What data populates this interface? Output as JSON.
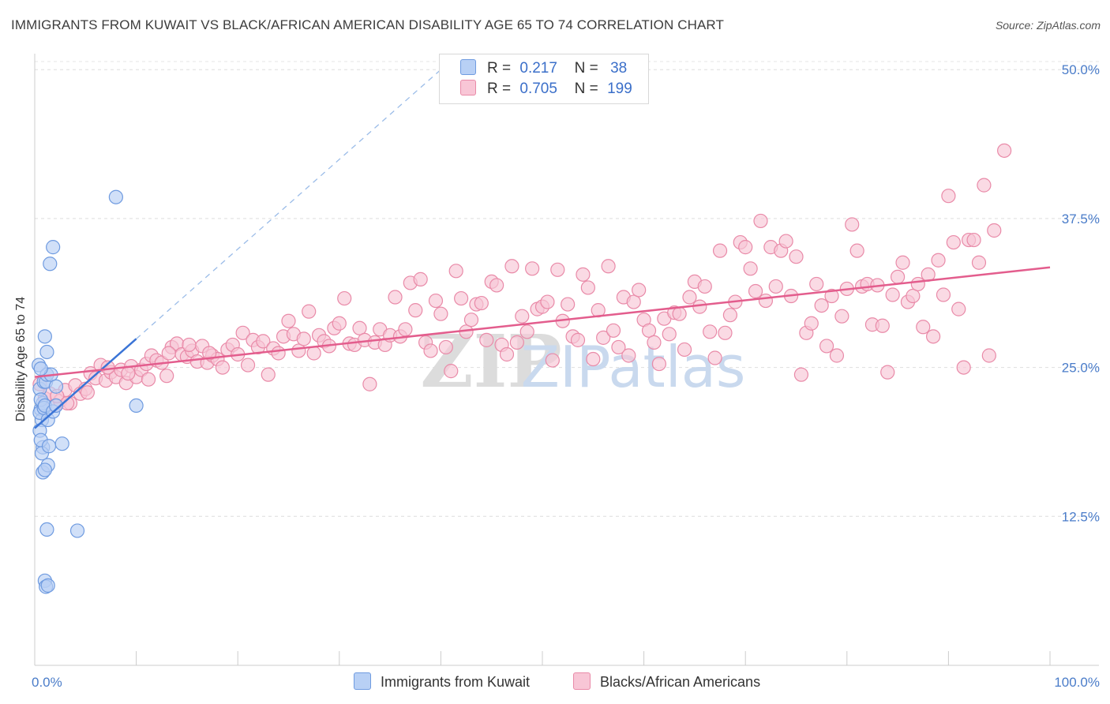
{
  "title": "IMMIGRANTS FROM KUWAIT VS BLACK/AFRICAN AMERICAN DISABILITY AGE 65 TO 74 CORRELATION CHART",
  "source": "Source: ZipAtlas.com",
  "watermark": "ZIPatlas",
  "legend": {
    "rows": [
      {
        "r_label": "R =",
        "r_value": "0.217",
        "n_label": "N =",
        "n_value": "38",
        "color": "#b8d0f5",
        "border": "#6f9be0"
      },
      {
        "r_label": "R =",
        "r_value": "0.705",
        "n_label": "N =",
        "n_value": "199",
        "color": "#f8c6d6",
        "border": "#e98aa8"
      }
    ]
  },
  "bottom_legend": [
    {
      "label": "Immigrants from Kuwait",
      "color": "#b8d0f5",
      "border": "#6f9be0"
    },
    {
      "label": "Blacks/African Americans",
      "color": "#f8c6d6",
      "border": "#e98aa8"
    }
  ],
  "chart_data": {
    "type": "scatter",
    "title": "IMMIGRANTS FROM KUWAIT VS BLACK/AFRICAN AMERICAN DISABILITY AGE 65 TO 74 CORRELATION CHART",
    "xlabel": "",
    "ylabel": "Disability Age 65 to 74",
    "xlim": [
      0,
      100
    ],
    "ylim": [
      0,
      52
    ],
    "x_tick_labels": [
      "0.0%",
      "100.0%"
    ],
    "y_ticks": [
      12.5,
      25.0,
      37.5,
      50.0
    ],
    "y_tick_labels": [
      "12.5%",
      "25.0%",
      "37.5%",
      "50.0%"
    ],
    "series": [
      {
        "name": "Immigrants from Kuwait",
        "color": "#6f9be0",
        "fill": "#b8d0f5",
        "trend": {
          "x": [
            0,
            10
          ],
          "y": [
            19.9,
            27.4
          ]
        },
        "trend_extension": {
          "x": [
            10,
            40
          ],
          "y": [
            27.4,
            50.0
          ]
        },
        "points": [
          [
            0.4,
            25.2
          ],
          [
            0.5,
            23.2
          ],
          [
            0.6,
            21.5
          ],
          [
            0.7,
            20.6
          ],
          [
            0.5,
            21.2
          ],
          [
            0.8,
            22.0
          ],
          [
            0.9,
            23.8
          ],
          [
            0.6,
            22.3
          ],
          [
            0.9,
            21.6
          ],
          [
            1.0,
            21.8
          ],
          [
            1.1,
            23.8
          ],
          [
            1.2,
            24.4
          ],
          [
            0.5,
            19.7
          ],
          [
            0.8,
            18.3
          ],
          [
            1.3,
            20.6
          ],
          [
            0.6,
            18.9
          ],
          [
            0.7,
            17.8
          ],
          [
            1.6,
            24.4
          ],
          [
            0.8,
            16.2
          ],
          [
            1.3,
            16.8
          ],
          [
            1.8,
            21.3
          ],
          [
            2.1,
            21.8
          ],
          [
            2.7,
            18.6
          ],
          [
            1.4,
            18.4
          ],
          [
            1.0,
            16.4
          ],
          [
            1.2,
            26.3
          ],
          [
            1.0,
            27.6
          ],
          [
            1.5,
            33.7
          ],
          [
            1.8,
            35.1
          ],
          [
            8.0,
            39.3
          ],
          [
            1.2,
            11.4
          ],
          [
            4.2,
            11.3
          ],
          [
            1.0,
            7.1
          ],
          [
            1.1,
            6.6
          ],
          [
            1.3,
            6.7
          ],
          [
            10.0,
            21.8
          ],
          [
            2.1,
            23.4
          ],
          [
            0.6,
            24.9
          ]
        ]
      },
      {
        "name": "Blacks/African Americans",
        "color": "#e35d8d",
        "fill": "#f8c6d6",
        "trend": {
          "x": [
            0,
            100
          ],
          "y": [
            24.2,
            33.4
          ]
        },
        "points": [
          [
            0.5,
            23.6
          ],
          [
            1.0,
            22.4
          ],
          [
            1.5,
            22.8
          ],
          [
            2.0,
            21.8
          ],
          [
            2.5,
            22.2
          ],
          [
            3.0,
            23.1
          ],
          [
            3.5,
            22.0
          ],
          [
            4.0,
            23.5
          ],
          [
            4.5,
            22.8
          ],
          [
            5.0,
            23.2
          ],
          [
            5.5,
            24.5
          ],
          [
            6.0,
            24.1
          ],
          [
            6.5,
            25.2
          ],
          [
            7.0,
            23.9
          ],
          [
            7.5,
            24.6
          ],
          [
            8.0,
            24.2
          ],
          [
            8.5,
            24.8
          ],
          [
            9.0,
            23.7
          ],
          [
            9.5,
            25.1
          ],
          [
            10.0,
            24.2
          ],
          [
            10.5,
            24.8
          ],
          [
            11.0,
            25.3
          ],
          [
            11.5,
            26.0
          ],
          [
            12.0,
            25.6
          ],
          [
            12.5,
            25.4
          ],
          [
            13.0,
            24.3
          ],
          [
            13.5,
            26.7
          ],
          [
            14.0,
            27.0
          ],
          [
            14.5,
            26.1
          ],
          [
            15.0,
            25.9
          ],
          [
            15.5,
            26.4
          ],
          [
            16.0,
            25.5
          ],
          [
            16.5,
            26.8
          ],
          [
            17.0,
            25.4
          ],
          [
            17.5,
            26.0
          ],
          [
            18.0,
            25.7
          ],
          [
            18.5,
            25.0
          ],
          [
            19.0,
            26.5
          ],
          [
            19.5,
            26.9
          ],
          [
            20.0,
            26.1
          ],
          [
            20.5,
            27.9
          ],
          [
            21.0,
            25.2
          ],
          [
            21.5,
            27.3
          ],
          [
            22.0,
            26.7
          ],
          [
            22.5,
            27.2
          ],
          [
            23.0,
            24.4
          ],
          [
            23.5,
            26.6
          ],
          [
            24.0,
            26.2
          ],
          [
            24.5,
            27.6
          ],
          [
            25.0,
            28.9
          ],
          [
            25.5,
            27.8
          ],
          [
            26.0,
            26.4
          ],
          [
            26.5,
            27.4
          ],
          [
            27.0,
            29.7
          ],
          [
            27.5,
            26.2
          ],
          [
            28.0,
            27.7
          ],
          [
            28.5,
            27.2
          ],
          [
            29.0,
            26.8
          ],
          [
            29.5,
            28.3
          ],
          [
            30.0,
            28.7
          ],
          [
            30.5,
            30.8
          ],
          [
            31.0,
            27.0
          ],
          [
            31.5,
            26.9
          ],
          [
            32.0,
            28.3
          ],
          [
            32.5,
            27.3
          ],
          [
            33.0,
            23.6
          ],
          [
            33.5,
            27.1
          ],
          [
            34.0,
            28.2
          ],
          [
            34.5,
            26.9
          ],
          [
            35.0,
            27.7
          ],
          [
            35.5,
            30.9
          ],
          [
            36.0,
            27.6
          ],
          [
            36.5,
            28.2
          ],
          [
            37.0,
            32.1
          ],
          [
            37.5,
            29.8
          ],
          [
            38.0,
            32.4
          ],
          [
            38.5,
            27.1
          ],
          [
            39.0,
            26.4
          ],
          [
            39.5,
            30.6
          ],
          [
            40.0,
            29.5
          ],
          [
            40.5,
            26.7
          ],
          [
            41.0,
            24.7
          ],
          [
            41.5,
            33.1
          ],
          [
            42.0,
            30.8
          ],
          [
            42.5,
            28.0
          ],
          [
            43.0,
            29.0
          ],
          [
            43.5,
            30.3
          ],
          [
            44.0,
            30.4
          ],
          [
            44.5,
            27.3
          ],
          [
            45.0,
            32.2
          ],
          [
            45.5,
            31.9
          ],
          [
            46.0,
            26.9
          ],
          [
            46.5,
            26.1
          ],
          [
            47.0,
            33.5
          ],
          [
            47.5,
            27.1
          ],
          [
            48.0,
            29.3
          ],
          [
            48.5,
            28.0
          ],
          [
            49.0,
            33.3
          ],
          [
            49.5,
            29.9
          ],
          [
            50.0,
            30.1
          ],
          [
            50.5,
            30.5
          ],
          [
            51.0,
            25.6
          ],
          [
            51.5,
            33.2
          ],
          [
            52.0,
            28.9
          ],
          [
            52.5,
            30.3
          ],
          [
            53.0,
            27.6
          ],
          [
            53.5,
            27.3
          ],
          [
            54.0,
            32.8
          ],
          [
            54.5,
            31.7
          ],
          [
            55.0,
            25.7
          ],
          [
            55.5,
            29.8
          ],
          [
            56.0,
            27.5
          ],
          [
            56.5,
            33.5
          ],
          [
            57.0,
            28.1
          ],
          [
            57.5,
            26.7
          ],
          [
            58.0,
            30.9
          ],
          [
            58.5,
            26.0
          ],
          [
            59.0,
            30.5
          ],
          [
            59.5,
            31.5
          ],
          [
            60.0,
            29.0
          ],
          [
            60.5,
            28.1
          ],
          [
            61.0,
            27.1
          ],
          [
            61.5,
            25.3
          ],
          [
            62.0,
            29.1
          ],
          [
            62.5,
            27.8
          ],
          [
            63.0,
            29.6
          ],
          [
            63.5,
            29.5
          ],
          [
            64.0,
            26.5
          ],
          [
            64.5,
            30.9
          ],
          [
            65.0,
            32.2
          ],
          [
            65.5,
            30.1
          ],
          [
            66.0,
            31.8
          ],
          [
            66.5,
            28.0
          ],
          [
            67.0,
            25.8
          ],
          [
            67.5,
            34.8
          ],
          [
            68.0,
            27.9
          ],
          [
            68.5,
            29.4
          ],
          [
            69.0,
            30.5
          ],
          [
            69.5,
            35.5
          ],
          [
            70.0,
            35.1
          ],
          [
            70.5,
            33.3
          ],
          [
            71.0,
            31.4
          ],
          [
            71.5,
            37.3
          ],
          [
            72.0,
            30.6
          ],
          [
            72.5,
            35.1
          ],
          [
            73.0,
            31.8
          ],
          [
            73.5,
            34.8
          ],
          [
            74.0,
            35.6
          ],
          [
            74.5,
            31.0
          ],
          [
            75.0,
            34.3
          ],
          [
            75.5,
            24.4
          ],
          [
            76.0,
            27.9
          ],
          [
            76.5,
            28.7
          ],
          [
            77.0,
            32.0
          ],
          [
            77.5,
            30.2
          ],
          [
            78.0,
            26.8
          ],
          [
            78.5,
            31.0
          ],
          [
            79.0,
            26.0
          ],
          [
            79.5,
            29.3
          ],
          [
            80.0,
            31.6
          ],
          [
            80.5,
            37.0
          ],
          [
            81.0,
            34.8
          ],
          [
            81.5,
            31.8
          ],
          [
            82.0,
            32.0
          ],
          [
            82.5,
            28.6
          ],
          [
            83.0,
            31.9
          ],
          [
            83.5,
            28.5
          ],
          [
            84.0,
            24.6
          ],
          [
            84.5,
            31.1
          ],
          [
            85.0,
            32.6
          ],
          [
            85.5,
            33.8
          ],
          [
            86.0,
            30.5
          ],
          [
            86.5,
            31.0
          ],
          [
            87.0,
            32.0
          ],
          [
            87.5,
            28.4
          ],
          [
            88.0,
            32.8
          ],
          [
            88.5,
            27.6
          ],
          [
            89.0,
            34.0
          ],
          [
            89.5,
            31.1
          ],
          [
            90.0,
            39.4
          ],
          [
            90.5,
            35.5
          ],
          [
            91.0,
            29.9
          ],
          [
            91.5,
            25.0
          ],
          [
            92.0,
            35.7
          ],
          [
            92.5,
            35.7
          ],
          [
            93.0,
            33.8
          ],
          [
            93.5,
            40.3
          ],
          [
            94.0,
            26.0
          ],
          [
            94.5,
            36.5
          ],
          [
            95.5,
            43.2
          ],
          [
            2.2,
            22.6
          ],
          [
            3.2,
            22.0
          ],
          [
            5.2,
            22.9
          ],
          [
            7.2,
            25.0
          ],
          [
            9.2,
            24.5
          ],
          [
            11.2,
            24.0
          ],
          [
            13.2,
            26.2
          ],
          [
            15.2,
            26.9
          ],
          [
            17.2,
            26.2
          ]
        ]
      }
    ]
  }
}
